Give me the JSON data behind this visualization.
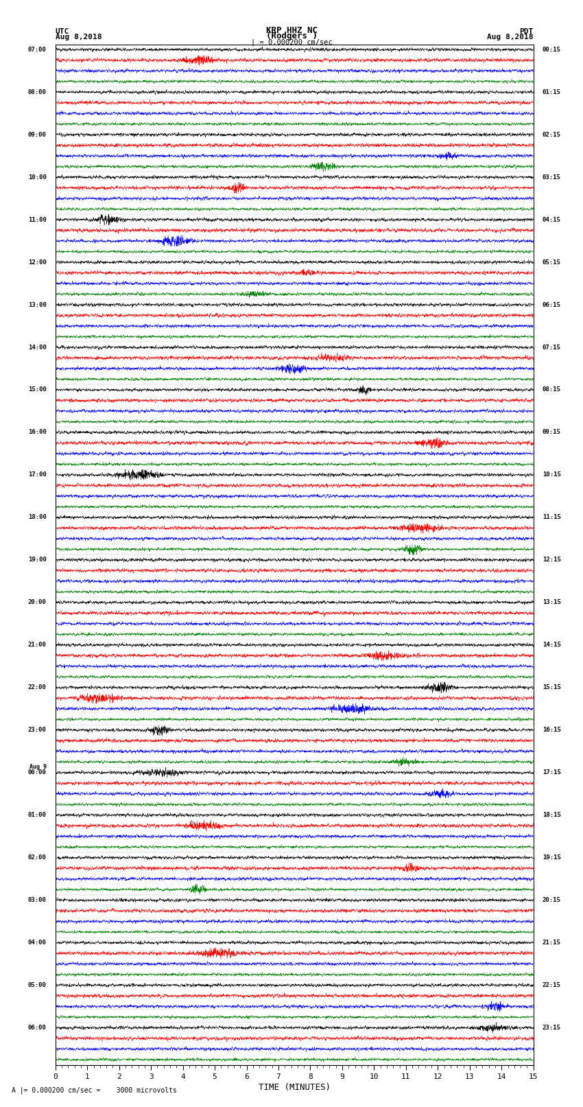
{
  "title_center": "KRP HHZ NC",
  "title_sub": "(Rodgers )",
  "title_left": "UTC",
  "title_right": "PDT",
  "date_left": "Aug 8,2018",
  "date_right": "Aug 8,2018",
  "scale_label": "| = 0.000200 cm/sec",
  "footer_label": "A |= 0.000200 cm/sec =    3000 microvolts",
  "xlabel": "TIME (MINUTES)",
  "xlim": [
    0,
    15
  ],
  "xticks": [
    0,
    1,
    2,
    3,
    4,
    5,
    6,
    7,
    8,
    9,
    10,
    11,
    12,
    13,
    14,
    15
  ],
  "colors": [
    "black",
    "red",
    "blue",
    "green"
  ],
  "num_hours": 24,
  "traces_per_hour": 4,
  "utc_labels": [
    "07:00",
    "08:00",
    "09:00",
    "10:00",
    "11:00",
    "12:00",
    "13:00",
    "14:00",
    "15:00",
    "16:00",
    "17:00",
    "18:00",
    "19:00",
    "20:00",
    "21:00",
    "22:00",
    "23:00",
    "00:00",
    "01:00",
    "02:00",
    "03:00",
    "04:00",
    "05:00",
    "06:00"
  ],
  "pdt_labels": [
    "00:15",
    "01:15",
    "02:15",
    "03:15",
    "04:15",
    "05:15",
    "06:15",
    "07:15",
    "08:15",
    "09:15",
    "10:15",
    "11:15",
    "12:15",
    "13:15",
    "14:15",
    "15:15",
    "16:15",
    "17:15",
    "18:15",
    "19:15",
    "20:15",
    "21:15",
    "22:15",
    "23:15"
  ],
  "aug9_row": 17,
  "background_color": "white",
  "trace_amplitude": 0.28,
  "figsize": [
    8.5,
    16.13
  ],
  "dpi": 100
}
